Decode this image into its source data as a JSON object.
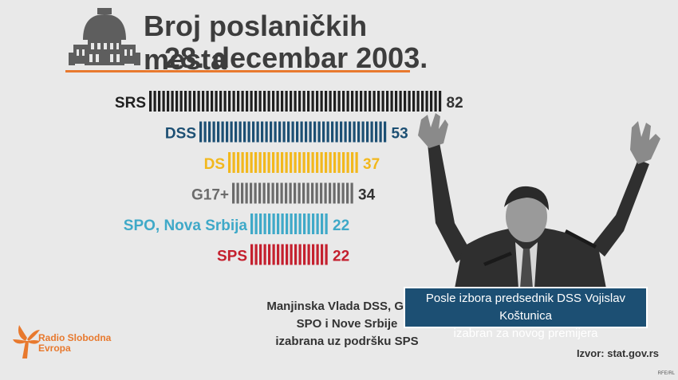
{
  "title": {
    "line1": "Broj poslaničkih mesta",
    "line2": "28. decembar 2003."
  },
  "chart_data": {
    "type": "bar",
    "orientation": "horizontal",
    "title": "Broj poslaničkih mesta 28. decembar 2003.",
    "categories": [
      "SRS",
      "DSS",
      "DS",
      "G17+",
      "SPO, Nova Srbija",
      "SPS"
    ],
    "values": [
      82,
      53,
      37,
      34,
      22,
      22
    ],
    "colors": [
      "#1f1f1f",
      "#1c4f73",
      "#f2b81d",
      "#6b6b6b",
      "#3fa9c8",
      "#c4202e"
    ],
    "grid": false,
    "legend": "none"
  },
  "note": {
    "line1": "Manjinska Vlada DSS, G17+,",
    "line2": "SPO i Nove Srbije",
    "line3": "izabrana uz podršku SPS"
  },
  "caption": {
    "line1": "Posle izbora predsednik DSS Vojislav Koštunica",
    "line2": "izabran za novog premijera"
  },
  "source": "Izvor: stat.gov.rs",
  "logo": {
    "line1": "Radio Slobodna",
    "line2": "Evropa"
  },
  "watermark": "RFE/RL",
  "colors": {
    "accent": "#e8792e",
    "caption_bg": "#1c4f73"
  }
}
